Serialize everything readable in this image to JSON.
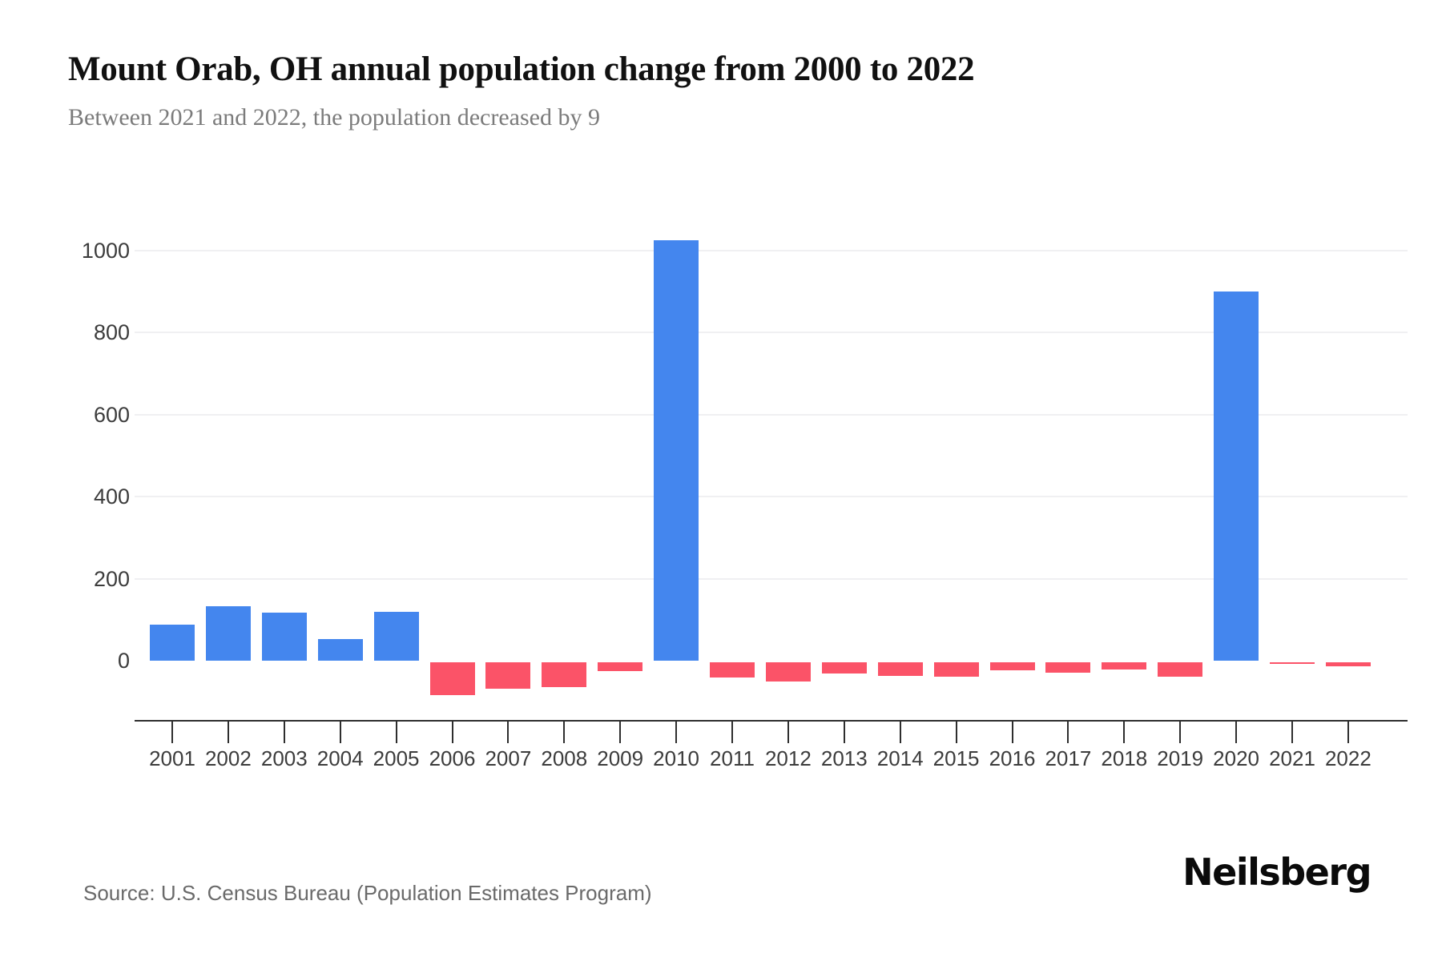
{
  "header": {
    "title": "Mount Orab, OH annual population change from 2000 to 2022",
    "subtitle": "Between 2021 and 2022, the population decreased by 9"
  },
  "footer": {
    "source": "Source: U.S. Census Bureau (Population Estimates Program)",
    "logo_text": "Neilsberg"
  },
  "chart_data": {
    "type": "bar",
    "title": "Mount Orab, OH annual population change from 2000 to 2022",
    "subtitle": "Between 2021 and 2022, the population decreased by 9",
    "categories": [
      "2001",
      "2002",
      "2003",
      "2004",
      "2005",
      "2006",
      "2007",
      "2008",
      "2009",
      "2010",
      "2011",
      "2012",
      "2013",
      "2014",
      "2015",
      "2016",
      "2017",
      "2018",
      "2019",
      "2020",
      "2021",
      "2022"
    ],
    "values": [
      87,
      133,
      117,
      53,
      120,
      -80,
      -64,
      -60,
      -22,
      1025,
      -37,
      -47,
      -27,
      -33,
      -35,
      -19,
      -25,
      -17,
      -35,
      900,
      -2,
      -9
    ],
    "xlabel": "",
    "ylabel": "",
    "y_ticks": [
      0,
      200,
      400,
      600,
      800,
      1000
    ],
    "ylim": [
      -100,
      1100
    ],
    "grid": "horizontal",
    "legend_position": "none",
    "positive_color": "#4486ee",
    "negative_color": "#fb5368",
    "axis_color": "#2e2e2e",
    "gridline_color": "#f0f0f2",
    "label_color": "#3c3c3c"
  }
}
